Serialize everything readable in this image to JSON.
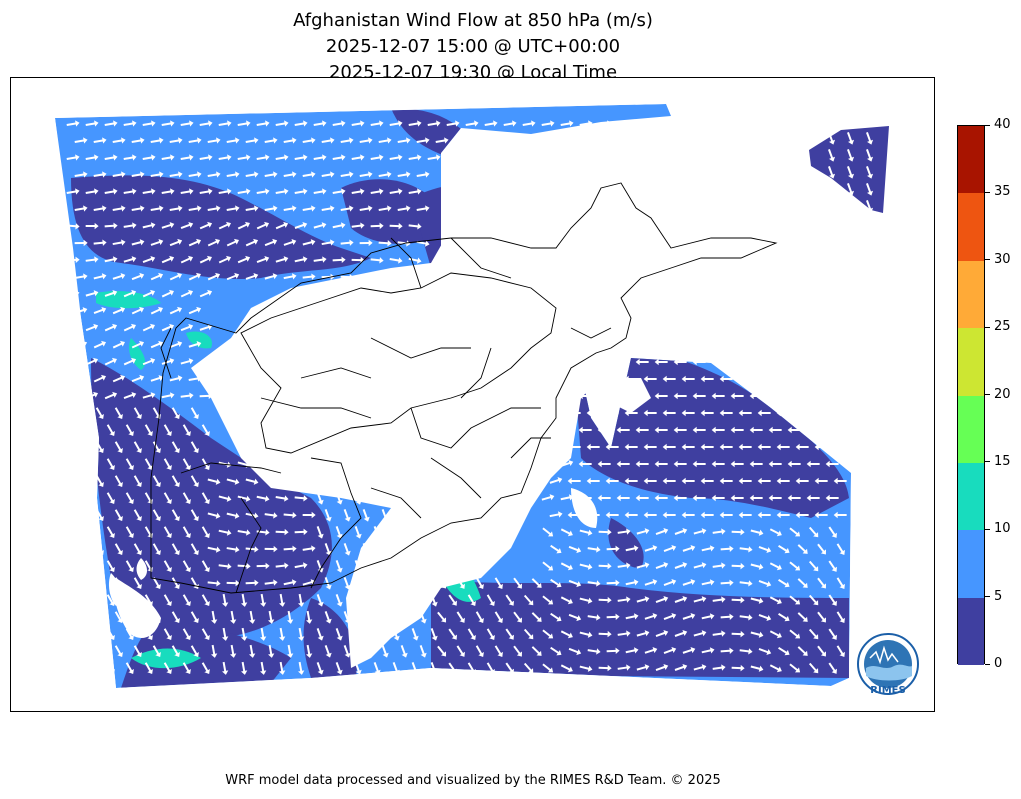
{
  "title": {
    "line1": "Afghanistan Wind Flow at 850 hPa (m/s)",
    "line2": "2025-12-07 15:00 @ UTC+00:00",
    "line3": "2025-12-07 19:30 @ Local Time"
  },
  "colorbar": {
    "ticks": [
      "0",
      "5",
      "10",
      "15",
      "20",
      "25",
      "30",
      "35",
      "40"
    ],
    "colors": [
      "#3f3fa0",
      "#4696ff",
      "#18dcbe",
      "#66ff55",
      "#cde632",
      "#ffaa37",
      "#ee5511",
      "#a81400"
    ]
  },
  "logo": {
    "text": "RIMES"
  },
  "footer": {
    "text": "WRF model data processed and visualized by the RIMES R&D Team. © 2025"
  }
}
